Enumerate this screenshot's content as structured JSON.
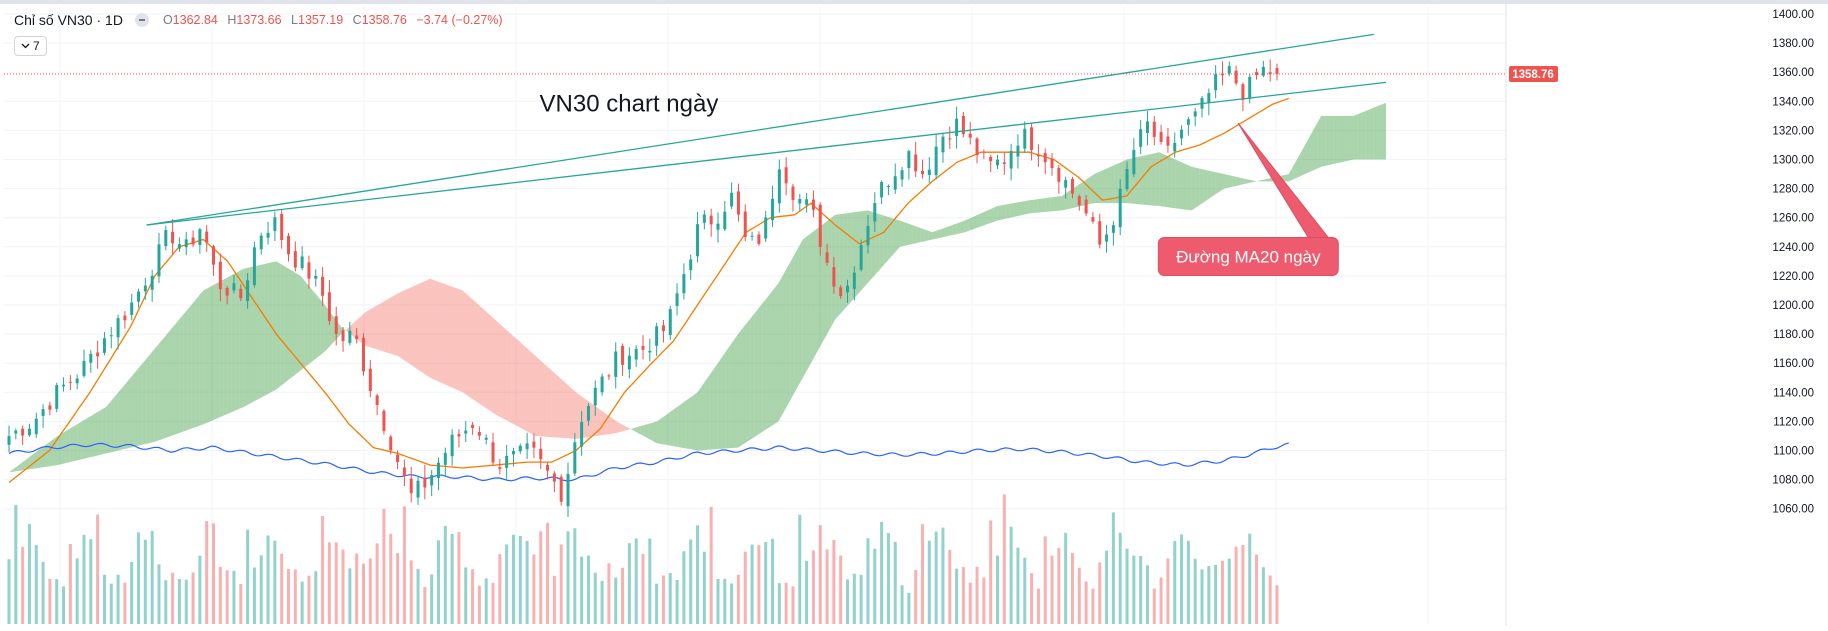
{
  "header": {
    "symbol": "Chỉ số VN30 · 1D",
    "ohlc": {
      "o_label": "O",
      "o": "1362.84",
      "h_label": "H",
      "h": "1373.66",
      "l_label": "L",
      "l": "1357.19",
      "c_label": "C",
      "c": "1358.76",
      "change": "−3.74 (−0.27%)"
    },
    "indicator_count": "7",
    "icons": [
      "collapse-icon",
      "chevron-down-icon"
    ]
  },
  "chart_data": {
    "type": "candlestick",
    "ylim": [
      1050,
      1405
    ],
    "y_ticks": [
      "1400.00",
      "1380.00",
      "1360.00",
      "1340.00",
      "1320.00",
      "1300.00",
      "1280.00",
      "1260.00",
      "1240.00",
      "1220.00",
      "1200.00",
      "1180.00",
      "1160.00",
      "1140.00",
      "1120.00",
      "1100.00",
      "1080.00",
      "1060.00"
    ],
    "y_tick_values": [
      1400,
      1380,
      1360,
      1340,
      1320,
      1300,
      1280,
      1260,
      1240,
      1220,
      1200,
      1180,
      1160,
      1140,
      1120,
      1100,
      1080,
      1060
    ],
    "last_price_label": "1358.76",
    "last_price": 1358.76,
    "bars": 187,
    "close_anchors": [
      [
        0,
        1110
      ],
      [
        6,
        1120
      ],
      [
        12,
        1140
      ],
      [
        18,
        1155
      ],
      [
        24,
        1178
      ],
      [
        30,
        1198
      ],
      [
        36,
        1228
      ],
      [
        40,
        1250
      ],
      [
        44,
        1238
      ],
      [
        48,
        1255
      ],
      [
        52,
        1215
      ],
      [
        58,
        1205
      ],
      [
        62,
        1248
      ],
      [
        66,
        1258
      ],
      [
        70,
        1235
      ],
      [
        74,
        1225
      ],
      [
        78,
        1208
      ],
      [
        82,
        1175
      ],
      [
        86,
        1180
      ],
      [
        90,
        1145
      ],
      [
        96,
        1100
      ],
      [
        100,
        1068
      ],
      [
        104,
        1078
      ],
      [
        110,
        1105
      ],
      [
        116,
        1120
      ],
      [
        122,
        1090
      ],
      [
        130,
        1100
      ],
      [
        138,
        1070
      ],
      [
        142,
        1120
      ],
      [
        146,
        1140
      ],
      [
        152,
        1165
      ],
      [
        158,
        1170
      ],
      [
        164,
        1185
      ],
      [
        168,
        1220
      ],
      [
        172,
        1255
      ],
      [
        176,
        1260
      ],
      [
        180,
        1275
      ],
      [
        184,
        1240
      ],
      [
        188,
        1248
      ],
      [
        192,
        1300
      ],
      [
        196,
        1275
      ],
      [
        200,
        1265
      ],
      [
        204,
        1228
      ],
      [
        208,
        1205
      ],
      [
        212,
        1240
      ],
      [
        216,
        1275
      ],
      [
        220,
        1290
      ],
      [
        224,
        1305
      ],
      [
        228,
        1290
      ],
      [
        232,
        1315
      ],
      [
        236,
        1325
      ],
      [
        240,
        1310
      ],
      [
        244,
        1295
      ],
      [
        248,
        1300
      ],
      [
        252,
        1318
      ],
      [
        256,
        1310
      ],
      [
        262,
        1290
      ],
      [
        268,
        1265
      ],
      [
        272,
        1240
      ],
      [
        276,
        1265
      ],
      [
        280,
        1305
      ],
      [
        284,
        1325
      ],
      [
        288,
        1300
      ],
      [
        292,
        1320
      ],
      [
        296,
        1330
      ],
      [
        300,
        1350
      ],
      [
        304,
        1360
      ],
      [
        308,
        1345
      ],
      [
        312,
        1362
      ],
      [
        316,
        1358.76
      ]
    ],
    "series": [
      {
        "name": "",
        "color": "#f57c00",
        "anchors": [
          [
            0,
            1078
          ],
          [
            10,
            1100
          ],
          [
            20,
            1140
          ],
          [
            30,
            1185
          ],
          [
            36,
            1220
          ],
          [
            42,
            1240
          ],
          [
            48,
            1245
          ],
          [
            54,
            1230
          ],
          [
            60,
            1205
          ],
          [
            66,
            1180
          ],
          [
            72,
            1160
          ],
          [
            78,
            1140
          ],
          [
            84,
            1118
          ],
          [
            90,
            1102
          ],
          [
            96,
            1098
          ],
          [
            104,
            1090
          ],
          [
            112,
            1088
          ],
          [
            120,
            1090
          ],
          [
            128,
            1092
          ],
          [
            134,
            1092
          ],
          [
            140,
            1100
          ],
          [
            146,
            1115
          ],
          [
            152,
            1140
          ],
          [
            158,
            1158
          ],
          [
            164,
            1175
          ],
          [
            170,
            1200
          ],
          [
            176,
            1225
          ],
          [
            182,
            1250
          ],
          [
            188,
            1260
          ],
          [
            194,
            1262
          ],
          [
            198,
            1270
          ],
          [
            204,
            1255
          ],
          [
            210,
            1242
          ],
          [
            216,
            1250
          ],
          [
            222,
            1270
          ],
          [
            228,
            1285
          ],
          [
            234,
            1298
          ],
          [
            240,
            1305
          ],
          [
            246,
            1305
          ],
          [
            252,
            1305
          ],
          [
            258,
            1300
          ],
          [
            264,
            1288
          ],
          [
            270,
            1272
          ],
          [
            276,
            1275
          ],
          [
            282,
            1295
          ],
          [
            288,
            1305
          ],
          [
            294,
            1310
          ],
          [
            300,
            1318
          ],
          [
            306,
            1328
          ],
          [
            312,
            1338
          ],
          [
            316,
            1342
          ]
        ]
      },
      {
        "name": "",
        "color": "#2962ff",
        "anchors": [
          [
            0,
            1098
          ],
          [
            10,
            1102
          ],
          [
            20,
            1104
          ],
          [
            30,
            1103
          ],
          [
            40,
            1100
          ],
          [
            50,
            1102
          ],
          [
            60,
            1098
          ],
          [
            70,
            1094
          ],
          [
            80,
            1090
          ],
          [
            90,
            1085
          ],
          [
            100,
            1082
          ],
          [
            110,
            1082
          ],
          [
            120,
            1080
          ],
          [
            130,
            1081
          ],
          [
            140,
            1080
          ],
          [
            150,
            1088
          ],
          [
            160,
            1092
          ],
          [
            170,
            1098
          ],
          [
            180,
            1100
          ],
          [
            190,
            1102
          ],
          [
            200,
            1100
          ],
          [
            210,
            1098
          ],
          [
            220,
            1097
          ],
          [
            230,
            1098
          ],
          [
            240,
            1100
          ],
          [
            250,
            1101
          ],
          [
            260,
            1099
          ],
          [
            270,
            1096
          ],
          [
            280,
            1092
          ],
          [
            290,
            1090
          ],
          [
            300,
            1093
          ],
          [
            306,
            1097
          ],
          [
            312,
            1102
          ],
          [
            316,
            1104
          ]
        ]
      }
    ],
    "cloud": {
      "top_anchors": [
        [
          0,
          1085
        ],
        [
          12,
          1110
        ],
        [
          24,
          1130
        ],
        [
          36,
          1170
        ],
        [
          48,
          1210
        ],
        [
          58,
          1225
        ],
        [
          66,
          1230
        ],
        [
          72,
          1220
        ],
        [
          78,
          1200
        ],
        [
          82,
          1185
        ],
        [
          88,
          1172
        ],
        [
          96,
          1165
        ],
        [
          104,
          1150
        ],
        [
          112,
          1140
        ],
        [
          120,
          1125
        ],
        [
          130,
          1110
        ],
        [
          140,
          1108
        ],
        [
          150,
          1112
        ],
        [
          160,
          1120
        ],
        [
          170,
          1140
        ],
        [
          180,
          1180
        ],
        [
          190,
          1215
        ],
        [
          196,
          1245
        ],
        [
          204,
          1262
        ],
        [
          212,
          1265
        ],
        [
          220,
          1258
        ],
        [
          228,
          1250
        ],
        [
          236,
          1258
        ],
        [
          244,
          1268
        ],
        [
          252,
          1272
        ],
        [
          260,
          1275
        ],
        [
          268,
          1290
        ],
        [
          276,
          1300
        ],
        [
          284,
          1305
        ],
        [
          292,
          1295
        ],
        [
          300,
          1290
        ],
        [
          308,
          1285
        ],
        [
          316,
          1290
        ],
        [
          324,
          1330
        ],
        [
          332,
          1330
        ],
        [
          340,
          1339
        ]
      ],
      "bottom_anchors": [
        [
          0,
          1085
        ],
        [
          12,
          1090
        ],
        [
          24,
          1098
        ],
        [
          36,
          1106
        ],
        [
          48,
          1118
        ],
        [
          58,
          1130
        ],
        [
          66,
          1142
        ],
        [
          72,
          1155
        ],
        [
          78,
          1168
        ],
        [
          82,
          1180
        ],
        [
          88,
          1195
        ],
        [
          96,
          1208
        ],
        [
          104,
          1218
        ],
        [
          112,
          1210
        ],
        [
          120,
          1190
        ],
        [
          130,
          1165
        ],
        [
          140,
          1140
        ],
        [
          150,
          1120
        ],
        [
          160,
          1105
        ],
        [
          170,
          1100
        ],
        [
          180,
          1102
        ],
        [
          190,
          1120
        ],
        [
          196,
          1150
        ],
        [
          204,
          1190
        ],
        [
          212,
          1215
        ],
        [
          220,
          1240
        ],
        [
          228,
          1245
        ],
        [
          236,
          1250
        ],
        [
          244,
          1258
        ],
        [
          252,
          1263
        ],
        [
          260,
          1265
        ],
        [
          268,
          1270
        ],
        [
          276,
          1270
        ],
        [
          284,
          1268
        ],
        [
          292,
          1265
        ],
        [
          300,
          1280
        ],
        [
          308,
          1285
        ],
        [
          316,
          1285
        ],
        [
          324,
          1295
        ],
        [
          332,
          1300
        ],
        [
          340,
          1300
        ]
      ]
    },
    "volume": {
      "ylim": [
        0,
        1
      ],
      "levels": [
        0.28,
        0.12,
        0.72
      ]
    },
    "trendlines": [
      {
        "color": "#26a69a",
        "from": [
          34,
          1255
        ],
        "to": [
          337,
          1386
        ]
      },
      {
        "color": "#26a69a",
        "from": [
          34,
          1255
        ],
        "to": [
          340,
          1353
        ]
      }
    ],
    "annotations": [
      {
        "text": "VN30 chart ngày",
        "x": 131,
        "y": 1340
      },
      {
        "text": "Đường MA20 ngày",
        "x": 306,
        "y": 1234,
        "pointer_to": [
          304,
          1340
        ]
      }
    ]
  }
}
